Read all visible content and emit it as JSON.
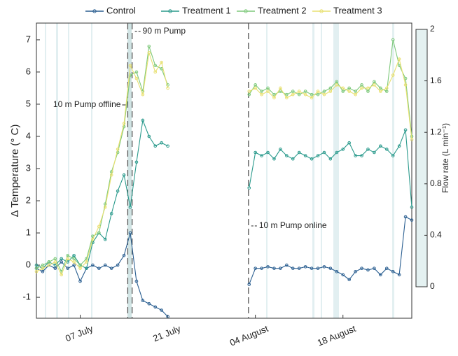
{
  "chart_data": {
    "type": "line",
    "ylabel": "Δ Temperature (° C)",
    "x": [
      0,
      1,
      2,
      3,
      4,
      5,
      6,
      7,
      8,
      9,
      10,
      11,
      12,
      13,
      14,
      15,
      16,
      17,
      18,
      19,
      20,
      21,
      22,
      23,
      24,
      25,
      26,
      27,
      28,
      29,
      30,
      31,
      32,
      33,
      34,
      35,
      36,
      37,
      38,
      39,
      40,
      41,
      42,
      43,
      44,
      45,
      46,
      47,
      48,
      49,
      50,
      51,
      52,
      53,
      54,
      55,
      56,
      57,
      58,
      59,
      60
    ],
    "xlim": [
      0,
      60
    ],
    "xticks": [
      {
        "value": 7,
        "label": "07 July"
      },
      {
        "value": 21,
        "label": "21 July"
      },
      {
        "value": 35,
        "label": "04 August"
      },
      {
        "value": 49,
        "label": "18 August"
      }
    ],
    "ylim": [
      -1.65,
      7.52
    ],
    "yticks": [
      -1,
      0,
      1,
      2,
      3,
      4,
      5,
      6,
      7
    ],
    "series": [
      {
        "name": "Control",
        "color": "#2b5f91",
        "values": [
          -0.1,
          -0.2,
          0.0,
          -0.1,
          0.1,
          -0.1,
          0.0,
          -0.5,
          -0.1,
          0.0,
          -0.1,
          0.0,
          -0.1,
          0.0,
          0.3,
          1.0,
          -0.5,
          -1.1,
          -1.2,
          -1.3,
          -1.4,
          -1.6,
          null,
          null,
          null,
          null,
          null,
          null,
          null,
          null,
          null,
          null,
          null,
          null,
          -0.6,
          -0.1,
          -0.1,
          -0.05,
          -0.1,
          -0.1,
          0.0,
          -0.1,
          -0.1,
          -0.05,
          -0.1,
          -0.1,
          -0.05,
          -0.1,
          -0.2,
          -0.3,
          -0.45,
          -0.2,
          -0.1,
          -0.15,
          -0.1,
          -0.3,
          -0.1,
          -0.2,
          -0.3,
          1.5,
          1.4
        ]
      },
      {
        "name": "Treatment 1",
        "color": "#2a9a8c",
        "values": [
          0.0,
          -0.1,
          0.1,
          0.0,
          0.2,
          0.1,
          0.3,
          0.0,
          -0.1,
          0.7,
          1.0,
          0.8,
          1.6,
          2.3,
          2.8,
          1.8,
          3.2,
          4.5,
          4.0,
          3.7,
          3.8,
          3.7,
          null,
          null,
          null,
          null,
          null,
          null,
          null,
          null,
          null,
          null,
          null,
          null,
          2.4,
          3.5,
          3.4,
          3.5,
          3.3,
          3.6,
          3.4,
          3.3,
          3.5,
          3.4,
          3.3,
          3.4,
          3.5,
          3.3,
          3.5,
          3.6,
          3.8,
          3.4,
          3.4,
          3.6,
          3.5,
          3.7,
          3.6,
          3.4,
          3.7,
          4.2,
          1.8
        ]
      },
      {
        "name": "Treatment 2",
        "color": "#7ec97b",
        "values": [
          -0.1,
          0.0,
          0.1,
          0.2,
          -0.2,
          0.3,
          0.2,
          0.0,
          0.2,
          0.9,
          1.0,
          1.9,
          2.9,
          3.5,
          4.3,
          5.9,
          6.0,
          5.4,
          6.8,
          6.2,
          6.1,
          5.6,
          null,
          null,
          null,
          null,
          null,
          null,
          null,
          null,
          null,
          null,
          null,
          null,
          5.3,
          5.6,
          5.4,
          5.5,
          5.3,
          5.4,
          5.3,
          5.4,
          5.3,
          5.4,
          5.3,
          5.3,
          5.4,
          5.5,
          5.7,
          5.4,
          5.5,
          5.4,
          5.6,
          5.4,
          5.7,
          5.5,
          5.4,
          7.0,
          6.2,
          5.8,
          4.0
        ]
      },
      {
        "name": "Treatment 3",
        "color": "#e8e070",
        "values": [
          -0.2,
          -0.1,
          0.0,
          0.1,
          -0.3,
          0.2,
          0.1,
          -0.1,
          0.1,
          0.8,
          1.2,
          1.8,
          2.8,
          3.6,
          4.4,
          6.2,
          5.8,
          5.3,
          6.6,
          6.0,
          6.3,
          5.5,
          null,
          null,
          null,
          null,
          null,
          null,
          null,
          null,
          null,
          null,
          null,
          null,
          5.4,
          5.5,
          5.3,
          5.4,
          5.2,
          5.5,
          5.2,
          5.3,
          5.4,
          5.3,
          5.2,
          5.4,
          5.3,
          5.4,
          5.6,
          5.5,
          5.4,
          5.3,
          5.5,
          5.5,
          5.6,
          5.4,
          5.5,
          5.9,
          6.4,
          5.6,
          3.9
        ]
      }
    ],
    "events": [
      {
        "label": "10 m Pump offline",
        "x": 14.6
      },
      {
        "label": "90 m Pump",
        "x": 15.3
      },
      {
        "label": "10 m Pump online",
        "x": 33.9
      }
    ],
    "colorbar": {
      "label": "Flow rate (L min⁻¹)",
      "lim": [
        0,
        2
      ],
      "ticks": [
        0,
        0.4,
        0.8,
        1.2,
        1.6,
        2
      ],
      "color": "#e4f1f1"
    }
  }
}
